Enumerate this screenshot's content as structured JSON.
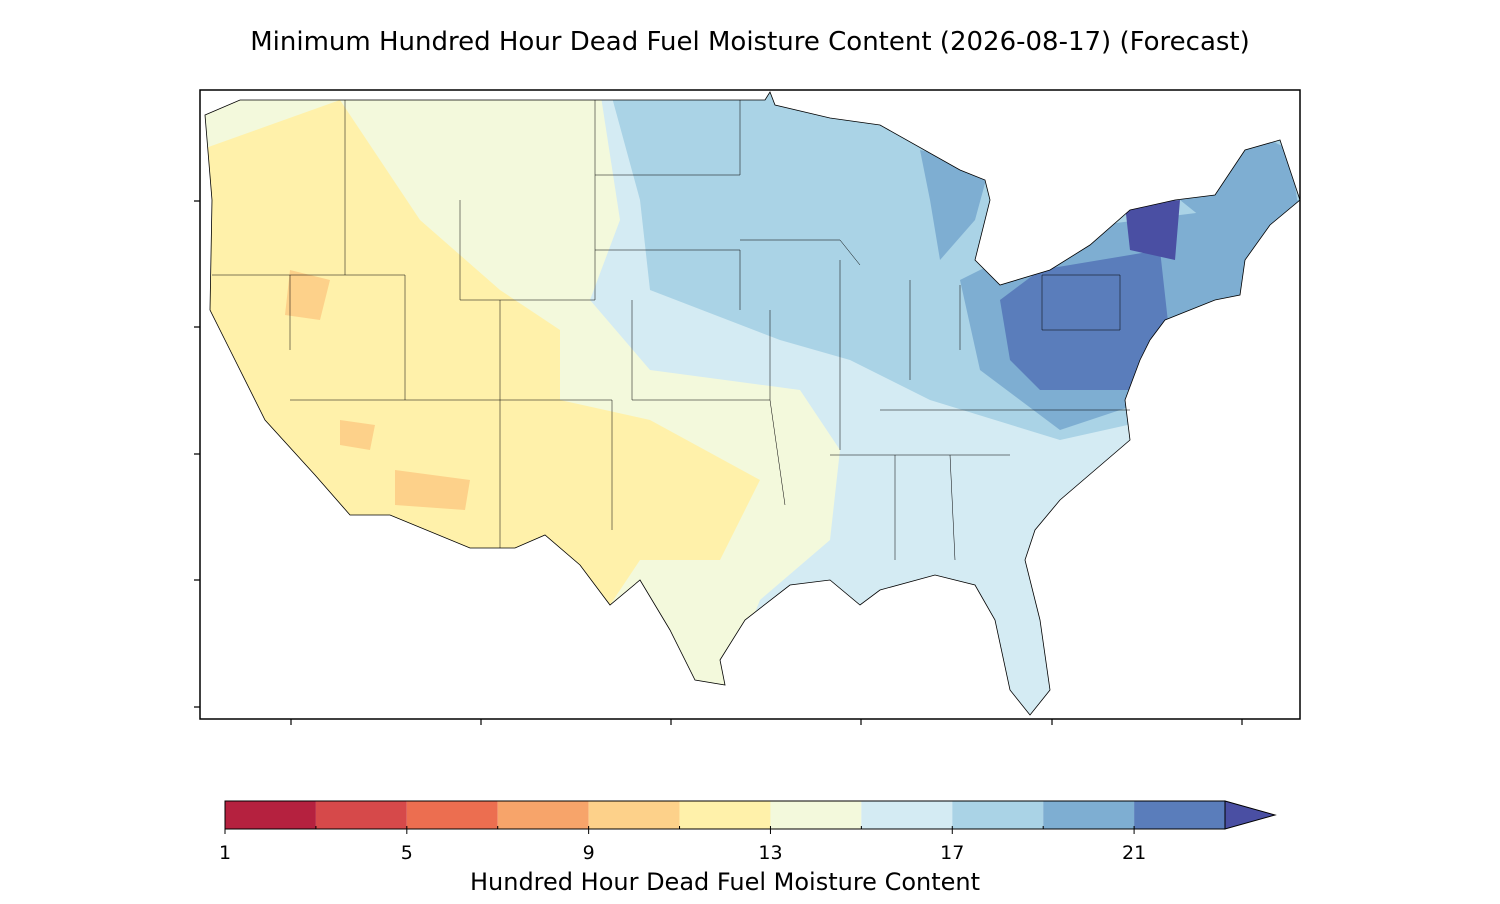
{
  "chart_data": {
    "type": "colormap",
    "title": "Minimum Hundred Hour Dead Fuel Moisture Content (2026-08-17) (Forecast)",
    "colorbar": {
      "label": "Hundred Hour Dead Fuel Moisture Content",
      "boundaries": [
        1,
        3,
        5,
        7,
        9,
        11,
        13,
        15,
        17,
        19,
        21,
        23
      ],
      "colors": [
        "#b5213f",
        "#d6494a",
        "#ec6e50",
        "#f7a46a",
        "#fdd18a",
        "#fff1aa",
        "#f3f9dc",
        "#d4ebf3",
        "#aad3e6",
        "#7eaed2",
        "#5a7dbb"
      ],
      "extend_color": "#4a4fa3",
      "ticks": [
        1,
        5,
        9,
        13,
        17,
        21
      ]
    }
  }
}
